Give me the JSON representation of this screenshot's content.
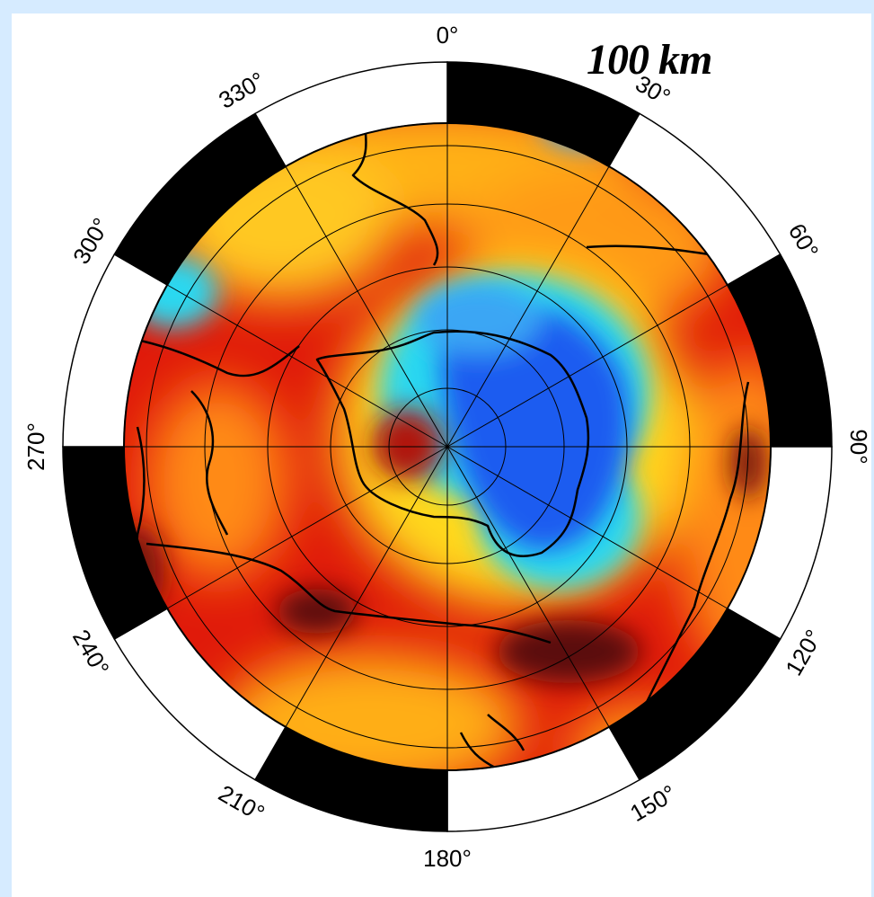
{
  "map": {
    "projection": "south polar stereographic",
    "depth_label": "100 km",
    "longitude_labels": [
      "0°",
      "30°",
      "60°",
      "90°",
      "120°",
      "150°",
      "180°",
      "210°",
      "240°",
      "270°",
      "300°",
      "330°"
    ],
    "colors": {
      "background": "#d6ebff",
      "panel": "#ffffff",
      "dark_red": "#5a0f08",
      "red": "#e01a0a",
      "orange": "#ff7a10",
      "yellow": "#ffe21e",
      "cyan": "#2ad8f0",
      "light_blue": "#3aa6f4",
      "blue": "#1a5cf0",
      "frame": "#000000",
      "coastline": "#000000",
      "gridline": "#000000"
    }
  }
}
